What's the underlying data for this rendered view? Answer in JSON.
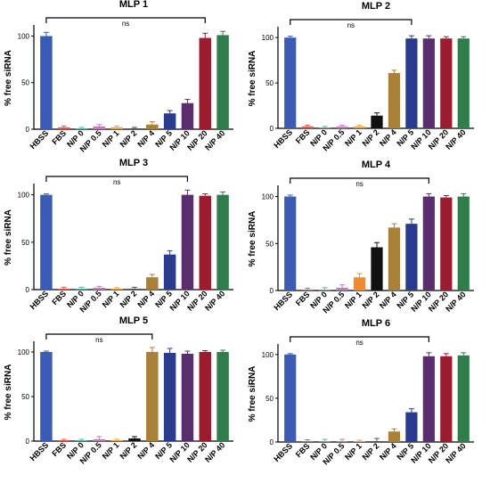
{
  "chart_data": [
    {
      "type": "bar",
      "title": "MLP 1",
      "ylabel": "% free siRNA",
      "ylim": [
        0,
        110
      ],
      "yticks": [
        "0",
        "50",
        "100"
      ],
      "categories": [
        "HBSS",
        "FBS",
        "N/P 0",
        "N/P 0.5",
        "N/P 1",
        "N/P 2",
        "N/P 4",
        "N/P 5",
        "N/P 10",
        "N/P 20",
        "N/P 40"
      ],
      "values": [
        100,
        2,
        1,
        3,
        2,
        1,
        5,
        17,
        28,
        98,
        101
      ],
      "errors": [
        4,
        1.5,
        1,
        2,
        1.5,
        1,
        3,
        3,
        4,
        5,
        4
      ],
      "colors": [
        "#3b5bb5",
        "#e05a4e",
        "#59b6a8",
        "#c678b8",
        "#e8a14a",
        "#555555",
        "#a8803a",
        "#2a3a8c",
        "#5a2e6e",
        "#9b1c2e",
        "#2e7d4a"
      ],
      "annotation": {
        "text": "ns",
        "from": "HBSS",
        "to": "N/P 20"
      }
    },
    {
      "type": "bar",
      "title": "MLP 2",
      "ylabel": "% free siRNA",
      "ylim": [
        0,
        110
      ],
      "yticks": [
        "0",
        "50",
        "100"
      ],
      "categories": [
        "HBSS",
        "FBS",
        "N/P 0",
        "N/P 0.5",
        "N/P 1",
        "N/P 2",
        "N/P 4",
        "N/P 5",
        "N/P 10",
        "N/P 20",
        "N/P 40"
      ],
      "values": [
        100,
        2,
        1,
        2,
        2,
        14,
        61,
        99,
        99,
        99,
        99
      ],
      "errors": [
        1.5,
        1.5,
        1,
        1.5,
        1.5,
        3,
        3,
        3,
        3,
        2,
        2
      ],
      "colors": [
        "#3b5bb5",
        "#e05a4e",
        "#59b6a8",
        "#c678b8",
        "#e8a14a",
        "#111111",
        "#a8803a",
        "#2a3a8c",
        "#5a2e6e",
        "#9b1c2e",
        "#2e7d4a"
      ],
      "annotation": {
        "text": "ns",
        "from": "HBSS",
        "to": "N/P 5"
      }
    },
    {
      "type": "bar",
      "title": "MLP 3",
      "ylabel": "% free siRNA",
      "ylim": [
        0,
        110
      ],
      "yticks": [
        "0",
        "50",
        "100"
      ],
      "categories": [
        "HBSS",
        "FBS",
        "N/P 0",
        "N/P 0.5",
        "N/P 1",
        "N/P 2",
        "N/P 4",
        "N/P 5",
        "N/P 10",
        "N/P 20",
        "N/P 40"
      ],
      "values": [
        100,
        1,
        1,
        2,
        1,
        1,
        13,
        37,
        100,
        99,
        100
      ],
      "errors": [
        1,
        1.5,
        1.5,
        1.5,
        1,
        1.5,
        3,
        4,
        5,
        2,
        3
      ],
      "colors": [
        "#3b5bb5",
        "#e05a4e",
        "#59b6a8",
        "#c678b8",
        "#e8a14a",
        "#555555",
        "#a8803a",
        "#2a3a8c",
        "#5a2e6e",
        "#9b1c2e",
        "#2e7d4a"
      ],
      "annotation": {
        "text": "ns",
        "from": "HBSS",
        "to": "N/P 10"
      }
    },
    {
      "type": "bar",
      "title": "MLP 4",
      "ylabel": "% free siRNA",
      "ylim": [
        0,
        110
      ],
      "yticks": [
        "0",
        "50",
        "100"
      ],
      "categories": [
        "HBSS",
        "FBS",
        "N/P 0",
        "N/P 0.5",
        "N/P 1",
        "N/P 2",
        "N/P 4",
        "N/P 5",
        "N/P 10",
        "N/P 20",
        "N/P 40"
      ],
      "values": [
        100,
        1,
        1,
        3,
        14,
        46,
        67,
        71,
        100,
        99,
        100
      ],
      "errors": [
        1.5,
        1.5,
        2,
        3,
        4,
        5,
        4,
        5,
        3,
        2,
        3
      ],
      "colors": [
        "#3b5bb5",
        "#e05a4e",
        "#59b6a8",
        "#c678b8",
        "#f08a2c",
        "#111111",
        "#a8803a",
        "#2a3a8c",
        "#5a2e6e",
        "#9b1c2e",
        "#2e7d4a"
      ],
      "annotation": {
        "text": "ns",
        "from": "HBSS",
        "to": "N/P 10"
      }
    },
    {
      "type": "bar",
      "title": "MLP 5",
      "ylabel": "% free siRNA",
      "ylim": [
        0,
        110
      ],
      "yticks": [
        "0",
        "50",
        "100"
      ],
      "categories": [
        "HBSS",
        "FBS",
        "N/P 0",
        "N/P 0.5",
        "N/P 1",
        "N/P 2",
        "N/P 4",
        "N/P 5",
        "N/P 10",
        "N/P 20",
        "N/P 40"
      ],
      "values": [
        100,
        1,
        1,
        2,
        1,
        3,
        100,
        99,
        98,
        100,
        100
      ],
      "errors": [
        1,
        1,
        1,
        3,
        1,
        2,
        5,
        5,
        3,
        1.5,
        2
      ],
      "colors": [
        "#3b5bb5",
        "#e05a4e",
        "#59b6a8",
        "#c678b8",
        "#e8a14a",
        "#111111",
        "#a8803a",
        "#2a3a8c",
        "#5a2e6e",
        "#9b1c2e",
        "#2e7d4a"
      ],
      "annotation": {
        "text": "ns",
        "from": "HBSS",
        "to": "N/P 4"
      }
    },
    {
      "type": "bar",
      "title": "MLP 6",
      "ylabel": "% free siRNA",
      "ylim": [
        0,
        110
      ],
      "yticks": [
        "0",
        "50",
        "100"
      ],
      "categories": [
        "HBSS",
        "FBS",
        "N/P 0",
        "N/P 0.5",
        "N/P 1",
        "N/P 2",
        "N/P 4",
        "N/P 5",
        "N/P 10",
        "N/P 20",
        "N/P 40"
      ],
      "values": [
        100,
        1,
        1,
        1,
        1,
        1,
        12,
        34,
        98,
        98,
        99
      ],
      "errors": [
        1,
        1.5,
        2,
        2,
        1,
        3,
        3,
        4,
        4,
        3,
        3
      ],
      "colors": [
        "#3b5bb5",
        "#e05a4e",
        "#59b6a8",
        "#c678b8",
        "#e8a14a",
        "#555555",
        "#a8803a",
        "#2a3a8c",
        "#5a2e6e",
        "#9b1c2e",
        "#2e7d4a"
      ],
      "annotation": {
        "text": "ns",
        "from": "HBSS",
        "to": "N/P 10"
      }
    }
  ]
}
